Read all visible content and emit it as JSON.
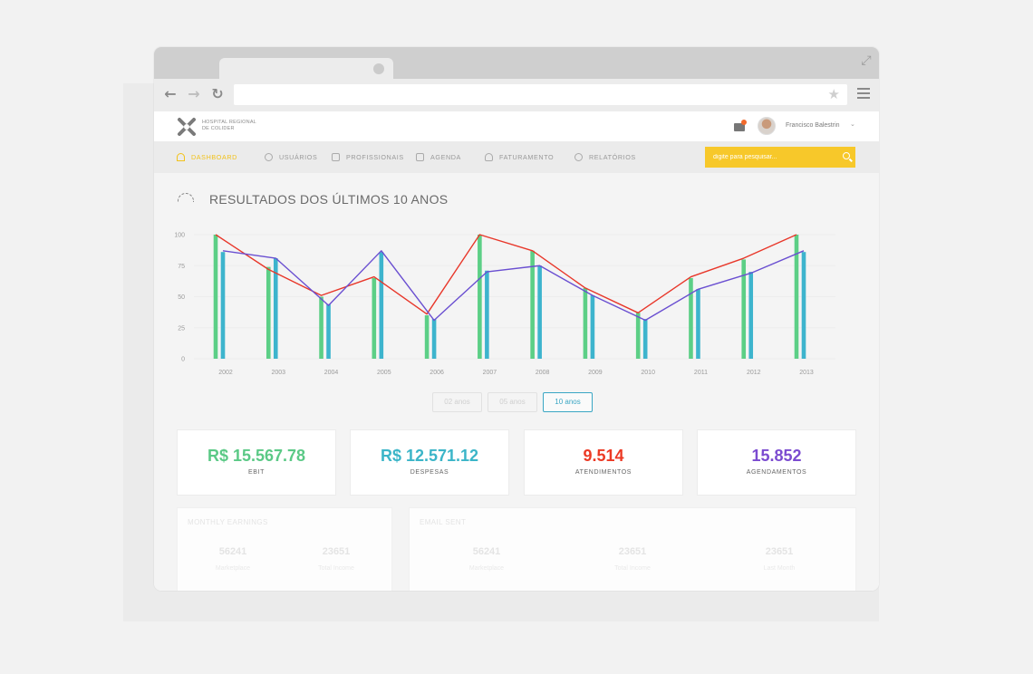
{
  "app": {
    "logo_text": [
      "HOSPITAL REGIONAL",
      "DE COLIDER"
    ],
    "user_name": "Francisco Balestrin"
  },
  "nav": {
    "items": [
      {
        "label": "DASHBOARD",
        "icon": "gauge-icon",
        "active": true
      },
      {
        "label": "USUÁRIOS",
        "icon": "user-icon",
        "active": false
      },
      {
        "label": "PROFISSIONAIS",
        "icon": "hand-icon",
        "active": false
      },
      {
        "label": "AGENDA",
        "icon": "calendar-icon",
        "active": false
      },
      {
        "label": "FATURAMENTO",
        "icon": "money-bag-icon",
        "active": false
      },
      {
        "label": "RELATÓRIOS",
        "icon": "pie-chart-icon",
        "active": false
      }
    ],
    "search_placeholder": "digite para pesquisar..."
  },
  "section": {
    "title": "RESULTADOS DOS ÚLTIMOS 10 ANOS"
  },
  "chart_data": {
    "type": "bar",
    "categories": [
      "2002",
      "2003",
      "2004",
      "2005",
      "2006",
      "2007",
      "2008",
      "2009",
      "2010",
      "2011",
      "2012",
      "2013"
    ],
    "yticks": [
      0,
      25,
      50,
      75,
      100
    ],
    "ylim": [
      0,
      100
    ],
    "grid": true,
    "series": [
      {
        "values": [
          100,
          74,
          50,
          65,
          35,
          100,
          87,
          57,
          37,
          65,
          80,
          100
        ],
        "color": "#5ccf86",
        "kind": "bar"
      },
      {
        "values": [
          86,
          81,
          44,
          86,
          32,
          71,
          75,
          51,
          32,
          56,
          70,
          86
        ],
        "color": "#3db4cd",
        "kind": "bar"
      },
      {
        "values": [
          100,
          72,
          51,
          66,
          36,
          100,
          87,
          57,
          37,
          66,
          81,
          100
        ],
        "color": "#e8372a",
        "kind": "line"
      },
      {
        "values": [
          87,
          81,
          43,
          87,
          31,
          70,
          75,
          51,
          31,
          56,
          69,
          87
        ],
        "color": "#6a4fd1",
        "kind": "line"
      }
    ]
  },
  "range_buttons": [
    {
      "label": "02 anos",
      "active": false
    },
    {
      "label": "05 anos",
      "active": false
    },
    {
      "label": "10 anos",
      "active": true
    }
  ],
  "stats": [
    {
      "value": "R$ 15.567.78",
      "label": "EBIT",
      "color": "#5bc986"
    },
    {
      "value": "R$ 12.571.12",
      "label": "DESPESAS",
      "color": "#3bb5c8"
    },
    {
      "value": "9.514",
      "label": "ATENDIMENTOS",
      "color": "#ec3a25"
    },
    {
      "value": "15.852",
      "label": "AGENDAMENTOS",
      "color": "#7b4bd0"
    }
  ],
  "monthly": {
    "title": "MONTHLY EARNINGS",
    "items": [
      {
        "value": "56241",
        "label": "Marketplace"
      },
      {
        "value": "23651",
        "label": "Total Income"
      }
    ]
  },
  "email": {
    "title": "EMAIL SENT",
    "items": [
      {
        "value": "56241",
        "label": "Marketplace"
      },
      {
        "value": "23651",
        "label": "Total Income"
      },
      {
        "value": "23651",
        "label": "Last Month"
      }
    ]
  }
}
